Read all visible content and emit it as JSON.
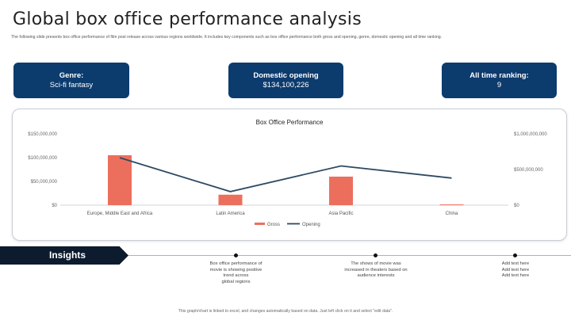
{
  "header": {
    "title": "Global box office performance analysis",
    "subtitle": "The following slide presents box office performance of film post release across various regions worldwide. It includes key components such as box office performance both gross and opening, genre, domestic opening and all time ranking."
  },
  "stats": [
    {
      "label": "Genre:",
      "value": "Sci-fi fantasy"
    },
    {
      "label": "Domestic opening",
      "value": "$134,100,226"
    },
    {
      "label": "All time ranking:",
      "value": "9"
    }
  ],
  "chart_data": {
    "type": "bar",
    "title": "Box Office Performance",
    "categories": [
      "Europe, Middle East and Africa",
      "Latin America",
      "Asia Pacific",
      "China"
    ],
    "series": [
      {
        "name": "Gross",
        "type": "bar",
        "axis": "left",
        "color": "#ec6f5e",
        "values": [
          105000000,
          22000000,
          60000000,
          1500000
        ]
      },
      {
        "name": "Opening",
        "type": "line",
        "axis": "right",
        "color": "#2e4a62",
        "values": [
          665000000,
          190000000,
          550000000,
          380000000
        ]
      }
    ],
    "y_left": {
      "ticks": [
        "$150,000,000",
        "$100,000,000",
        "$50,000,000",
        "$0"
      ],
      "ylim": [
        0,
        150000000
      ]
    },
    "y_right": {
      "ticks": [
        "$1,000,000,000",
        "$500,000,000",
        "$0"
      ],
      "ylim": [
        0,
        1000000000
      ]
    },
    "legend": "bottom",
    "grid": false
  },
  "insights": {
    "label": "Insights",
    "items": [
      {
        "lines": [
          "Box office performance of",
          "movie is showing positive",
          "trend across",
          "global regions"
        ]
      },
      {
        "lines": [
          "The shows of movie was",
          "increased in theaters based on",
          "audience interests"
        ]
      },
      {
        "lines": [
          "Add text here",
          "Add text here",
          "Add text here"
        ]
      }
    ]
  },
  "footer": {
    "text": "This graph/chart is linked to excel, and changes automatically based on data. Just left click on it and select \"edit data\"."
  }
}
